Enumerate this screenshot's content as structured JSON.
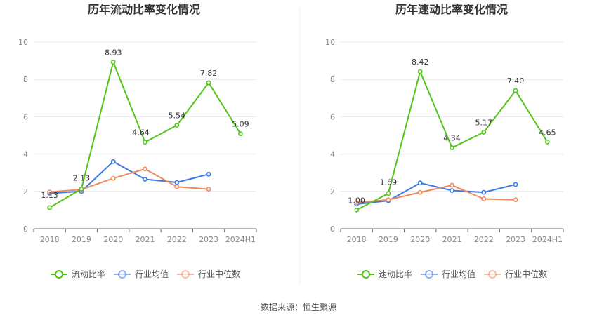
{
  "source": "数据来源：恒生聚源",
  "colors": {
    "company": "#52c41a",
    "industry_avg": "#3b78e7",
    "industry_median": "#f08a5d",
    "grid": "#e6e6ef",
    "axis": "#666666"
  },
  "chart_data": [
    {
      "type": "line",
      "title": "历年流动比率变化情况",
      "categories": [
        "2018",
        "2019",
        "2020",
        "2021",
        "2022",
        "2023",
        "2024H1"
      ],
      "ylim": [
        0,
        10
      ],
      "yticks": [
        0,
        2,
        4,
        6,
        8,
        10
      ],
      "legend": "bottom",
      "series": [
        {
          "name": "流动比率",
          "key": "company",
          "values": [
            1.13,
            2.13,
            8.93,
            4.64,
            5.54,
            7.82,
            5.09
          ],
          "labels": [
            "1.13",
            "2.13",
            "8.93",
            "4.64",
            "5.54",
            "7.82",
            "5.09"
          ]
        },
        {
          "name": "行业均值",
          "key": "industry_avg",
          "values": [
            1.9,
            2.0,
            3.6,
            2.65,
            2.48,
            2.92,
            null
          ]
        },
        {
          "name": "行业中位数",
          "key": "industry_median",
          "values": [
            1.97,
            2.1,
            2.7,
            3.2,
            2.25,
            2.12,
            null
          ]
        }
      ]
    },
    {
      "type": "line",
      "title": "历年速动比率变化情况",
      "categories": [
        "2018",
        "2019",
        "2020",
        "2021",
        "2022",
        "2023",
        "2024H1"
      ],
      "ylim": [
        0,
        10
      ],
      "yticks": [
        0,
        2,
        4,
        6,
        8,
        10
      ],
      "legend": "bottom",
      "series": [
        {
          "name": "速动比率",
          "key": "company",
          "values": [
            1.0,
            1.89,
            8.42,
            4.34,
            5.17,
            7.4,
            4.65
          ],
          "labels": [
            "1.00",
            "1.89",
            "8.42",
            "4.34",
            "5.17",
            "7.40",
            "4.65"
          ]
        },
        {
          "name": "行业均值",
          "key": "industry_avg",
          "values": [
            1.32,
            1.5,
            2.45,
            2.05,
            1.95,
            2.37,
            null
          ]
        },
        {
          "name": "行业中位数",
          "key": "industry_median",
          "values": [
            1.4,
            1.55,
            1.95,
            2.33,
            1.6,
            1.55,
            null
          ]
        }
      ]
    }
  ]
}
